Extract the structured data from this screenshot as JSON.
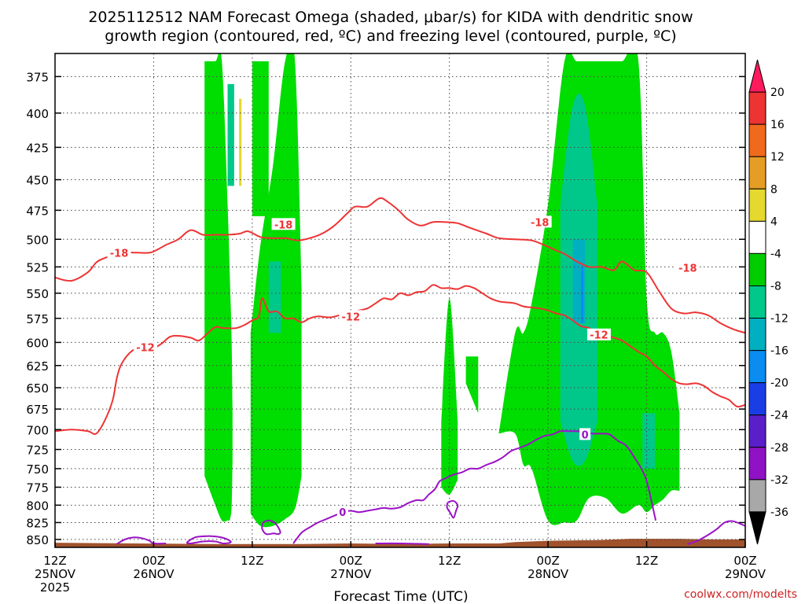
{
  "chart_data": {
    "type": "heatmap",
    "title_lines": [
      "2025112512 NAM Forecast Omega (shaded, μbar/s) for KIDA with dendritic snow",
      "growth region (contoured, red, ºC) and freezing level (contoured, purple, ºC)"
    ],
    "xlabel": "Forecast Time (UTC)",
    "ylabel": "",
    "credit": "coolwx.com/modelts",
    "x_range_hours": [
      0,
      84
    ],
    "x_ticks": [
      {
        "hour": 0,
        "lines": [
          "12Z",
          "25NOV",
          "2025"
        ]
      },
      {
        "hour": 12,
        "lines": [
          "00Z",
          "26NOV"
        ]
      },
      {
        "hour": 24,
        "lines": [
          "12Z"
        ]
      },
      {
        "hour": 36,
        "lines": [
          "00Z",
          "27NOV"
        ]
      },
      {
        "hour": 48,
        "lines": [
          "12Z"
        ]
      },
      {
        "hour": 60,
        "lines": [
          "00Z",
          "28NOV"
        ]
      },
      {
        "hour": 72,
        "lines": [
          "12Z"
        ]
      },
      {
        "hour": 84,
        "lines": [
          "00Z",
          "29NOV"
        ]
      }
    ],
    "y_ticks": [
      375,
      400,
      425,
      450,
      475,
      500,
      525,
      550,
      575,
      600,
      625,
      650,
      675,
      700,
      725,
      750,
      775,
      800,
      825,
      850
    ],
    "y_range_mb": [
      360,
      862
    ],
    "y_scale": "log-pressure",
    "grid": true,
    "colorbar": {
      "labels": [
        "20",
        "16",
        "12",
        "8",
        "4",
        "-4",
        "-8",
        "-12",
        "-16",
        "-20",
        "-24",
        "-28",
        "-32",
        "-36"
      ],
      "colors": [
        "#ff1a5e",
        "#ee3333",
        "#f06a1e",
        "#e69d25",
        "#e6d92e",
        "#ffffff",
        "#00cc00",
        "#00c88a",
        "#00b0c0",
        "#0a8cf0",
        "#1a3ee6",
        "#5a1fc8",
        "#8f12c4",
        "#a8a8a8",
        "#000000"
      ]
    },
    "omega_regions": [
      {
        "level": -4,
        "color": "#00dd00",
        "hours": [
          18.2,
          19.5,
          20.3,
          21.0,
          21.3,
          21.5,
          21.6
        ],
        "top": [
          365,
          365,
          365,
          470,
          540,
          600,
          680
        ],
        "bottom": [
          760,
          800,
          822,
          822,
          820,
          800,
          740
        ]
      },
      {
        "level": -4,
        "color": "#00dd00",
        "hours": [
          23.8,
          25.0,
          26.5,
          28.0,
          29.2,
          30.0
        ],
        "top": [
          590,
          505,
          440,
          365,
          365,
          545
        ],
        "bottom": [
          812,
          830,
          830,
          820,
          805,
          760
        ]
      },
      {
        "level": -4,
        "color": "#00dd00",
        "hours": [
          24.0,
          26.0
        ],
        "top": [
          365,
          365
        ],
        "bottom": [
          480,
          480
        ]
      },
      {
        "level": -4,
        "color": "#00dd00",
        "hours": [
          47.0,
          48.0,
          49.0
        ],
        "top": [
          690,
          555,
          690
        ],
        "bottom": [
          775,
          785,
          765
        ]
      },
      {
        "level": -4,
        "color": "#00dd00",
        "hours": [
          50.0,
          51.5
        ],
        "top": [
          615,
          615
        ],
        "bottom": [
          645,
          680
        ]
      },
      {
        "level": -4,
        "color": "#00dd00",
        "hours": [
          54.0,
          56.0,
          57.0,
          58.0,
          60.0,
          62.0,
          63.5,
          65.0,
          67.0,
          69.0,
          71.0,
          72.0,
          73.0,
          74.0,
          75.0,
          76.0
        ],
        "top": [
          705,
          590,
          590,
          560,
          470,
          365,
          365,
          365,
          365,
          365,
          365,
          555,
          590,
          590,
          610,
          680
        ],
        "bottom": [
          705,
          705,
          745,
          750,
          822,
          825,
          822,
          790,
          790,
          812,
          800,
          810,
          800,
          792,
          780,
          780
        ]
      },
      {
        "level": -8,
        "color": "#00c88a",
        "hours": [
          21.0,
          21.8
        ],
        "top": [
          380,
          380
        ],
        "bottom": [
          455,
          455
        ]
      },
      {
        "level": -8,
        "color": "#00c88a",
        "hours": [
          26.0,
          27.5
        ],
        "top": [
          520,
          520
        ],
        "bottom": [
          590,
          590
        ]
      },
      {
        "level": -8,
        "color": "#00c88a",
        "hours": [
          61.5,
          63.0,
          64.5,
          66.0
        ],
        "top": [
          470,
          395,
          395,
          470
        ],
        "bottom": [
          690,
          740,
          740,
          690
        ]
      },
      {
        "level": -8,
        "color": "#00c88a",
        "hours": [
          71.5,
          73.0
        ],
        "top": [
          680,
          680
        ],
        "bottom": [
          750,
          750
        ]
      },
      {
        "level": -12,
        "color": "#00b0c0",
        "hours": [
          63.0,
          64.5
        ],
        "top": [
          500,
          500
        ],
        "bottom": [
          580,
          580
        ]
      },
      {
        "level": -16,
        "color": "#0a8cf0",
        "hours": [
          64.0,
          64.3
        ],
        "top": [
          525,
          525
        ],
        "bottom": [
          580,
          580
        ]
      },
      {
        "level": 4,
        "color": "#e6d92e",
        "hours": [
          22.4,
          22.7
        ],
        "top": [
          390,
          390
        ],
        "bottom": [
          455,
          455
        ]
      }
    ],
    "terrain": {
      "color": "#a0522d",
      "hours": [
        0,
        10,
        20,
        30,
        36,
        42,
        48,
        54,
        56,
        60,
        66,
        70,
        76,
        80,
        84
      ],
      "surface_mb": [
        855,
        856,
        857,
        857,
        856,
        857,
        856,
        856,
        854,
        852,
        851,
        849,
        849,
        850,
        850
      ]
    },
    "series": [
      {
        "name": "-18",
        "color": "#ee3333",
        "label_at": [
          [
            7.8,
            512
          ],
          [
            27.8,
            487
          ],
          [
            59.0,
            485
          ],
          [
            77.0,
            526
          ]
        ],
        "x": [
          0,
          2,
          4,
          5,
          6,
          8,
          10,
          11.5,
          12.5,
          13.5,
          15,
          16.5,
          18,
          19.5,
          21,
          22.5,
          23.5,
          25,
          26.5,
          28,
          29.5,
          31,
          32.5,
          34,
          35.5,
          36.5,
          38,
          39.5,
          40.5,
          41.8,
          43,
          44.5,
          46,
          47.5,
          49,
          50.5,
          52.5,
          54,
          56,
          58,
          59.5,
          61,
          62,
          63.5,
          65,
          66.5,
          68,
          69,
          70.5,
          72,
          73.5,
          75,
          76.5,
          78,
          79.5,
          81,
          82.5,
          84
        ],
        "y": [
          535,
          538,
          530,
          521,
          517,
          512,
          512,
          512,
          509,
          505,
          500,
          492,
          496,
          496,
          496,
          495,
          493,
          498,
          499,
          499,
          501,
          499,
          495,
          488,
          478,
          472,
          472,
          465,
          468,
          475,
          483,
          488,
          485,
          485,
          486,
          490,
          495,
          499,
          500,
          501,
          505,
          510,
          513,
          520,
          525,
          525,
          528,
          520,
          528,
          530,
          548,
          565,
          570,
          569,
          572,
          580,
          586,
          590
        ]
      },
      {
        "name": "-12",
        "color": "#ee3333",
        "label_at": [
          [
            11.0,
            605
          ],
          [
            36.0,
            573
          ],
          [
            66.2,
            592
          ]
        ],
        "x": [
          0,
          2,
          4,
          5,
          6,
          7,
          7.5,
          8,
          9,
          10,
          11,
          12,
          13,
          14,
          15,
          16.5,
          17.5,
          18.5,
          19.5,
          20.5,
          22,
          23,
          24,
          24.8,
          25.2,
          26,
          27,
          28,
          29,
          30,
          31,
          32,
          33.5,
          35,
          36,
          37,
          38,
          39,
          40,
          41,
          42,
          43,
          44,
          45,
          46,
          47,
          48,
          49,
          50,
          51,
          52,
          53,
          54,
          55,
          56,
          57,
          58,
          59,
          60,
          61,
          62,
          63,
          64,
          65,
          66,
          67,
          68,
          69,
          70,
          71,
          72,
          73,
          74,
          75,
          76,
          77,
          78,
          79,
          80,
          81,
          82,
          83,
          84
        ],
        "y": [
          702,
          700,
          702,
          705,
          690,
          665,
          640,
          625,
          612,
          606,
          604,
          606,
          601,
          594,
          593,
          595,
          598,
          591,
          584,
          585,
          585,
          582,
          577,
          573,
          555,
          568,
          568,
          575,
          575,
          579,
          575,
          573,
          574,
          571,
          570,
          567,
          565,
          560,
          555,
          556,
          550,
          552,
          549,
          548,
          542,
          545,
          545,
          546,
          543,
          545,
          550,
          555,
          558,
          559,
          560,
          563,
          564,
          565,
          567,
          570,
          572,
          577,
          583,
          585,
          592,
          592,
          595,
          598,
          604,
          610,
          615,
          625,
          632,
          640,
          645,
          646,
          645,
          648,
          655,
          660,
          664,
          672,
          670
        ]
      },
      {
        "name": "0",
        "color": "#9a12c6",
        "label_at": [
          [
            35.0,
            810
          ],
          [
            64.5,
            706
          ]
        ],
        "x": [
          29,
          30,
          31,
          32,
          33,
          34,
          35,
          36,
          37,
          38,
          39,
          40,
          41,
          42,
          43,
          44,
          44.8,
          45.5,
          46.2,
          46.8,
          47.5,
          48.5,
          49.5,
          50.5,
          51.5,
          52.5,
          53.5,
          54.5,
          55.5,
          56.5,
          57.5,
          58.5,
          59.5,
          60.5,
          61.5,
          62.5,
          63.5,
          64.5,
          65.5,
          66.5,
          67.5,
          68.5,
          69.5,
          70.5,
          71.2,
          71.8,
          72.2,
          72.6,
          73.1
        ],
        "y": [
          856,
          840,
          832,
          825,
          820,
          815,
          810,
          808,
          810,
          808,
          806,
          804,
          805,
          803,
          797,
          793,
          793,
          785,
          778,
          767,
          763,
          758,
          755,
          750,
          750,
          745,
          741,
          735,
          727,
          723,
          719,
          713,
          708,
          706,
          702,
          702,
          702,
          703,
          705,
          705,
          706,
          714,
          720,
          735,
          747,
          760,
          775,
          795,
          822
        ]
      },
      {
        "name": "0",
        "color": "#9a12c6",
        "label_at": [],
        "x": [
          77.0,
          78.2,
          79.5,
          80.5,
          81.5,
          82.5,
          84.0
        ],
        "y": [
          857,
          852,
          843,
          835,
          825,
          823,
          830
        ]
      },
      {
        "name": "0",
        "color": "#9a12c6",
        "label_at": [],
        "x": [
          7.5,
          8.5,
          9.5,
          10.5,
          11.5,
          12.0,
          13.5
        ],
        "y": [
          857,
          850,
          847,
          848,
          852,
          856,
          856
        ]
      },
      {
        "name": "0",
        "color": "#9a12c6",
        "label_at": [],
        "x": [
          16.0,
          17.0,
          18.5,
          19.8,
          20.8,
          21.4,
          20.5,
          19.5,
          18.0,
          16.5,
          16.0
        ],
        "y": [
          855,
          847,
          845,
          846,
          849,
          854,
          856,
          853,
          853,
          856,
          855
        ]
      },
      {
        "name": "0",
        "color": "#9a12c6",
        "label_at": [],
        "x": [
          25.3,
          26.0,
          26.8,
          27.4,
          27.2,
          26.6,
          25.7,
          25.2,
          25.3
        ],
        "y": [
          825,
          822,
          826,
          838,
          842,
          841,
          842,
          834,
          825
        ]
      },
      {
        "name": "0",
        "color": "#9a12c6",
        "label_at": [],
        "x": [
          47.8,
          48.5,
          49.0,
          48.8,
          48.5,
          48.1,
          47.7,
          47.8
        ],
        "y": [
          796,
          794,
          800,
          808,
          818,
          811,
          803,
          796
        ]
      },
      {
        "name": "0",
        "color": "#9a12c6",
        "label_at": [],
        "x": [
          39.0,
          42.0,
          45.5
        ],
        "y": [
          856,
          856,
          857
        ]
      }
    ]
  }
}
